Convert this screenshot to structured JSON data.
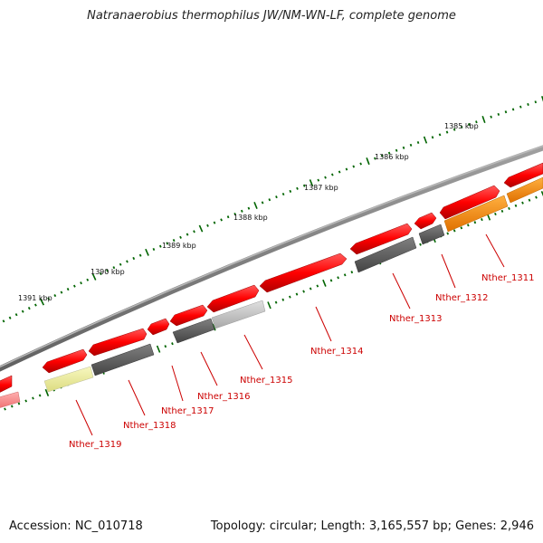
{
  "title": "Natranaerobius thermophilus JW/NM-WN-LF, complete genome",
  "footer": {
    "accession": "Accession: NC_010718",
    "summary": "Topology: circular; Length: 3,165,557 bp; Genes: 2,946"
  },
  "ruler_labels": [
    "1385 kbp",
    "1386 kbp",
    "1387 kbp",
    "1388 kbp",
    "1389 kbp",
    "1390 kbp",
    "1391 kbp"
  ],
  "gene_labels": [
    "Nther_1311",
    "Nther_1312",
    "Nther_1313",
    "Nther_1314",
    "Nther_1315",
    "Nther_1316",
    "Nther_1317",
    "Nther_1318",
    "Nther_1319"
  ],
  "colors": {
    "forward_gene": "#ff0000",
    "backbone": "#808080",
    "gene_orange": "#ff8c00",
    "gene_dark_gray": "#555555",
    "gene_light_gray": "#c0c0c0",
    "gene_pale_yellow": "#eeee99",
    "gene_pink": "#ff9090",
    "ruler_ticks": "#006400",
    "label_text": "#cc0000"
  }
}
